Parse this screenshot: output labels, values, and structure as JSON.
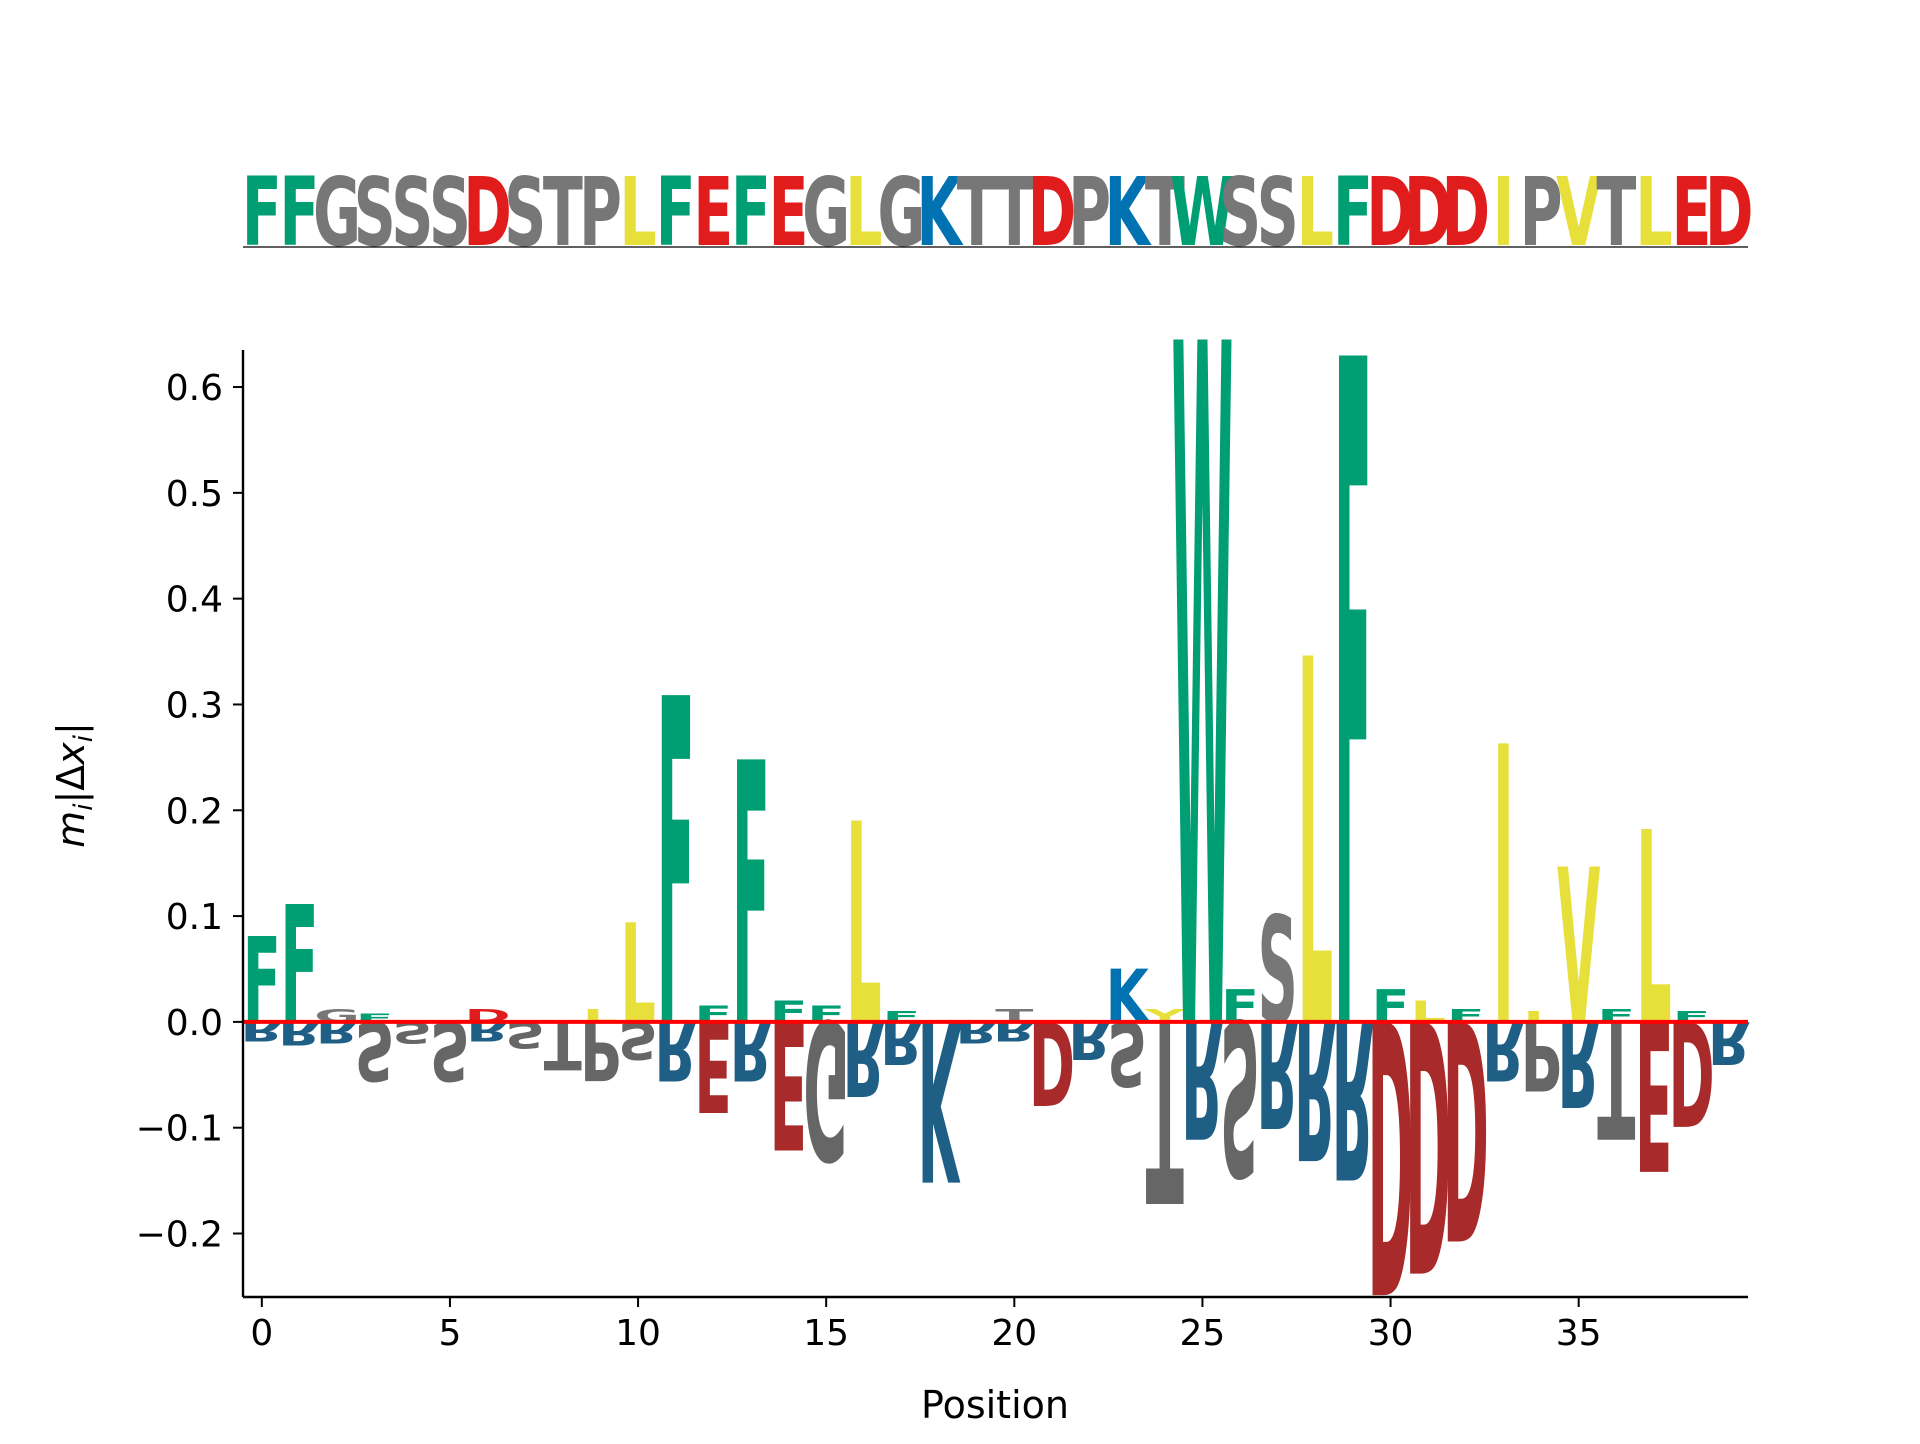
{
  "chart_data": {
    "type": "sequence-logo",
    "xlabel": "Position",
    "ylabel": "m_i|Δx_i|",
    "xlim": [
      -0.5,
      39.5
    ],
    "ylim": [
      -0.26,
      0.635
    ],
    "xticks": [
      0,
      5,
      10,
      15,
      20,
      25,
      30,
      35
    ],
    "yticks": [
      -0.2,
      -0.1,
      0.0,
      0.1,
      0.2,
      0.3,
      0.4,
      0.5,
      0.6
    ],
    "ytick_labels": [
      "−0.2",
      "−0.1",
      "0.0",
      "0.1",
      "0.2",
      "0.3",
      "0.4",
      "0.5",
      "0.6"
    ],
    "baseline_color": "#ff0000",
    "sequence": "FFGSSSDSTPLFEFEGLGKTTDPKTWSSLFDDDIPVTLED",
    "colors": {
      "F": "#009e73",
      "W": "#009e73",
      "L": "#e8e03a",
      "I": "#e8e03a",
      "V": "#e8e03a",
      "M": "#e8e03a",
      "Y": "#e8e03a",
      "D": "#e01c1c",
      "E": "#e01c1c",
      "K": "#0072b2",
      "R": "#0072b2",
      "G": "#777777",
      "S": "#777777",
      "T": "#777777",
      "P": "#777777",
      "A": "#777777",
      "N": "#777777",
      "Q": "#777777"
    },
    "neg_colors": {
      "D": "#a82a2a",
      "E": "#a82a2a",
      "K": "#1f5f86",
      "R": "#1f5f86",
      "G": "#666666",
      "S": "#666666",
      "T": "#666666",
      "P": "#666666",
      "A": "#666666",
      "N": "#666666",
      "Q": "#666666",
      "F": "#009e73",
      "L": "#e8e03a"
    },
    "positive": [
      {
        "x": 0,
        "letter": "F",
        "value": 0.08
      },
      {
        "x": 1,
        "letter": "F",
        "value": 0.11
      },
      {
        "x": 2,
        "letter": "G",
        "value": 0.012
      },
      {
        "x": 3,
        "letter": "F",
        "value": 0.008
      },
      {
        "x": 6,
        "letter": "D",
        "value": 0.012
      },
      {
        "x": 9,
        "letter": "L",
        "value": 0.012
      },
      {
        "x": 10,
        "letter": "L",
        "value": 0.093
      },
      {
        "x": 11,
        "letter": "F",
        "value": 0.305
      },
      {
        "x": 12,
        "letter": "F",
        "value": 0.015
      },
      {
        "x": 13,
        "letter": "F",
        "value": 0.245
      },
      {
        "x": 14,
        "letter": "F",
        "value": 0.02
      },
      {
        "x": 15,
        "letter": "F",
        "value": 0.015
      },
      {
        "x": 16,
        "letter": "L",
        "value": 0.188
      },
      {
        "x": 17,
        "letter": "F",
        "value": 0.01
      },
      {
        "x": 20,
        "letter": "T",
        "value": 0.012
      },
      {
        "x": 23,
        "letter": "K",
        "value": 0.05
      },
      {
        "x": 24,
        "letter": "Y",
        "value": 0.012
      },
      {
        "x": 25,
        "letter": "W",
        "value": 0.637
      },
      {
        "x": 26,
        "letter": "F",
        "value": 0.03
      },
      {
        "x": 27,
        "letter": "S",
        "value": 0.1
      },
      {
        "x": 28,
        "letter": "L",
        "value": 0.342
      },
      {
        "x": 29,
        "letter": "F",
        "value": 0.622
      },
      {
        "x": 30,
        "letter": "F",
        "value": 0.03
      },
      {
        "x": 31,
        "letter": "L",
        "value": 0.02
      },
      {
        "x": 32,
        "letter": "F",
        "value": 0.012
      },
      {
        "x": 33,
        "letter": "I",
        "value": 0.26
      },
      {
        "x": 34,
        "letter": "L",
        "value": 0.01
      },
      {
        "x": 35,
        "letter": "V",
        "value": 0.145
      },
      {
        "x": 36,
        "letter": "F",
        "value": 0.012
      },
      {
        "x": 37,
        "letter": "L",
        "value": 0.18
      },
      {
        "x": 38,
        "letter": "F",
        "value": 0.01
      }
    ],
    "negative": [
      {
        "x": 0,
        "letter": "R",
        "value": -0.018
      },
      {
        "x": 1,
        "letter": "R",
        "value": -0.022
      },
      {
        "x": 2,
        "letter": "R",
        "value": -0.02
      },
      {
        "x": 3,
        "letter": "S",
        "value": -0.055
      },
      {
        "x": 4,
        "letter": "S",
        "value": -0.02
      },
      {
        "x": 5,
        "letter": "S",
        "value": -0.055
      },
      {
        "x": 6,
        "letter": "R",
        "value": -0.018
      },
      {
        "x": 7,
        "letter": "S",
        "value": -0.025
      },
      {
        "x": 8,
        "letter": "T",
        "value": -0.045
      },
      {
        "x": 9,
        "letter": "P",
        "value": -0.055
      },
      {
        "x": 10,
        "letter": "S",
        "value": -0.035
      },
      {
        "x": 11,
        "letter": "R",
        "value": -0.055
      },
      {
        "x": 12,
        "letter": "E",
        "value": -0.085
      },
      {
        "x": 13,
        "letter": "R",
        "value": -0.055
      },
      {
        "x": 14,
        "letter": "E",
        "value": -0.12
      },
      {
        "x": 15,
        "letter": "G",
        "value": -0.13
      },
      {
        "x": 16,
        "letter": "R",
        "value": -0.07
      },
      {
        "x": 17,
        "letter": "R",
        "value": -0.04
      },
      {
        "x": 18,
        "letter": "K",
        "value": -0.15
      },
      {
        "x": 19,
        "letter": "R",
        "value": -0.02
      },
      {
        "x": 20,
        "letter": "R",
        "value": -0.018
      },
      {
        "x": 21,
        "letter": "D",
        "value": -0.078
      },
      {
        "x": 22,
        "letter": "R",
        "value": -0.035
      },
      {
        "x": 23,
        "letter": "S",
        "value": -0.06
      },
      {
        "x": 24,
        "letter": "T",
        "value": -0.17
      },
      {
        "x": 25,
        "letter": "R",
        "value": -0.11
      },
      {
        "x": 26,
        "letter": "S",
        "value": -0.145
      },
      {
        "x": 27,
        "letter": "R",
        "value": -0.1
      },
      {
        "x": 28,
        "letter": "R",
        "value": -0.13
      },
      {
        "x": 29,
        "letter": "R",
        "value": -0.148
      },
      {
        "x": 30,
        "letter": "D",
        "value": -0.255
      },
      {
        "x": 31,
        "letter": "D",
        "value": -0.235
      },
      {
        "x": 32,
        "letter": "D",
        "value": -0.205
      },
      {
        "x": 33,
        "letter": "R",
        "value": -0.055
      },
      {
        "x": 34,
        "letter": "P",
        "value": -0.065
      },
      {
        "x": 35,
        "letter": "R",
        "value": -0.08
      },
      {
        "x": 36,
        "letter": "T",
        "value": -0.11
      },
      {
        "x": 37,
        "letter": "E",
        "value": -0.14
      },
      {
        "x": 38,
        "letter": "D",
        "value": -0.098
      },
      {
        "x": 39,
        "letter": "R",
        "value": -0.04
      }
    ]
  }
}
